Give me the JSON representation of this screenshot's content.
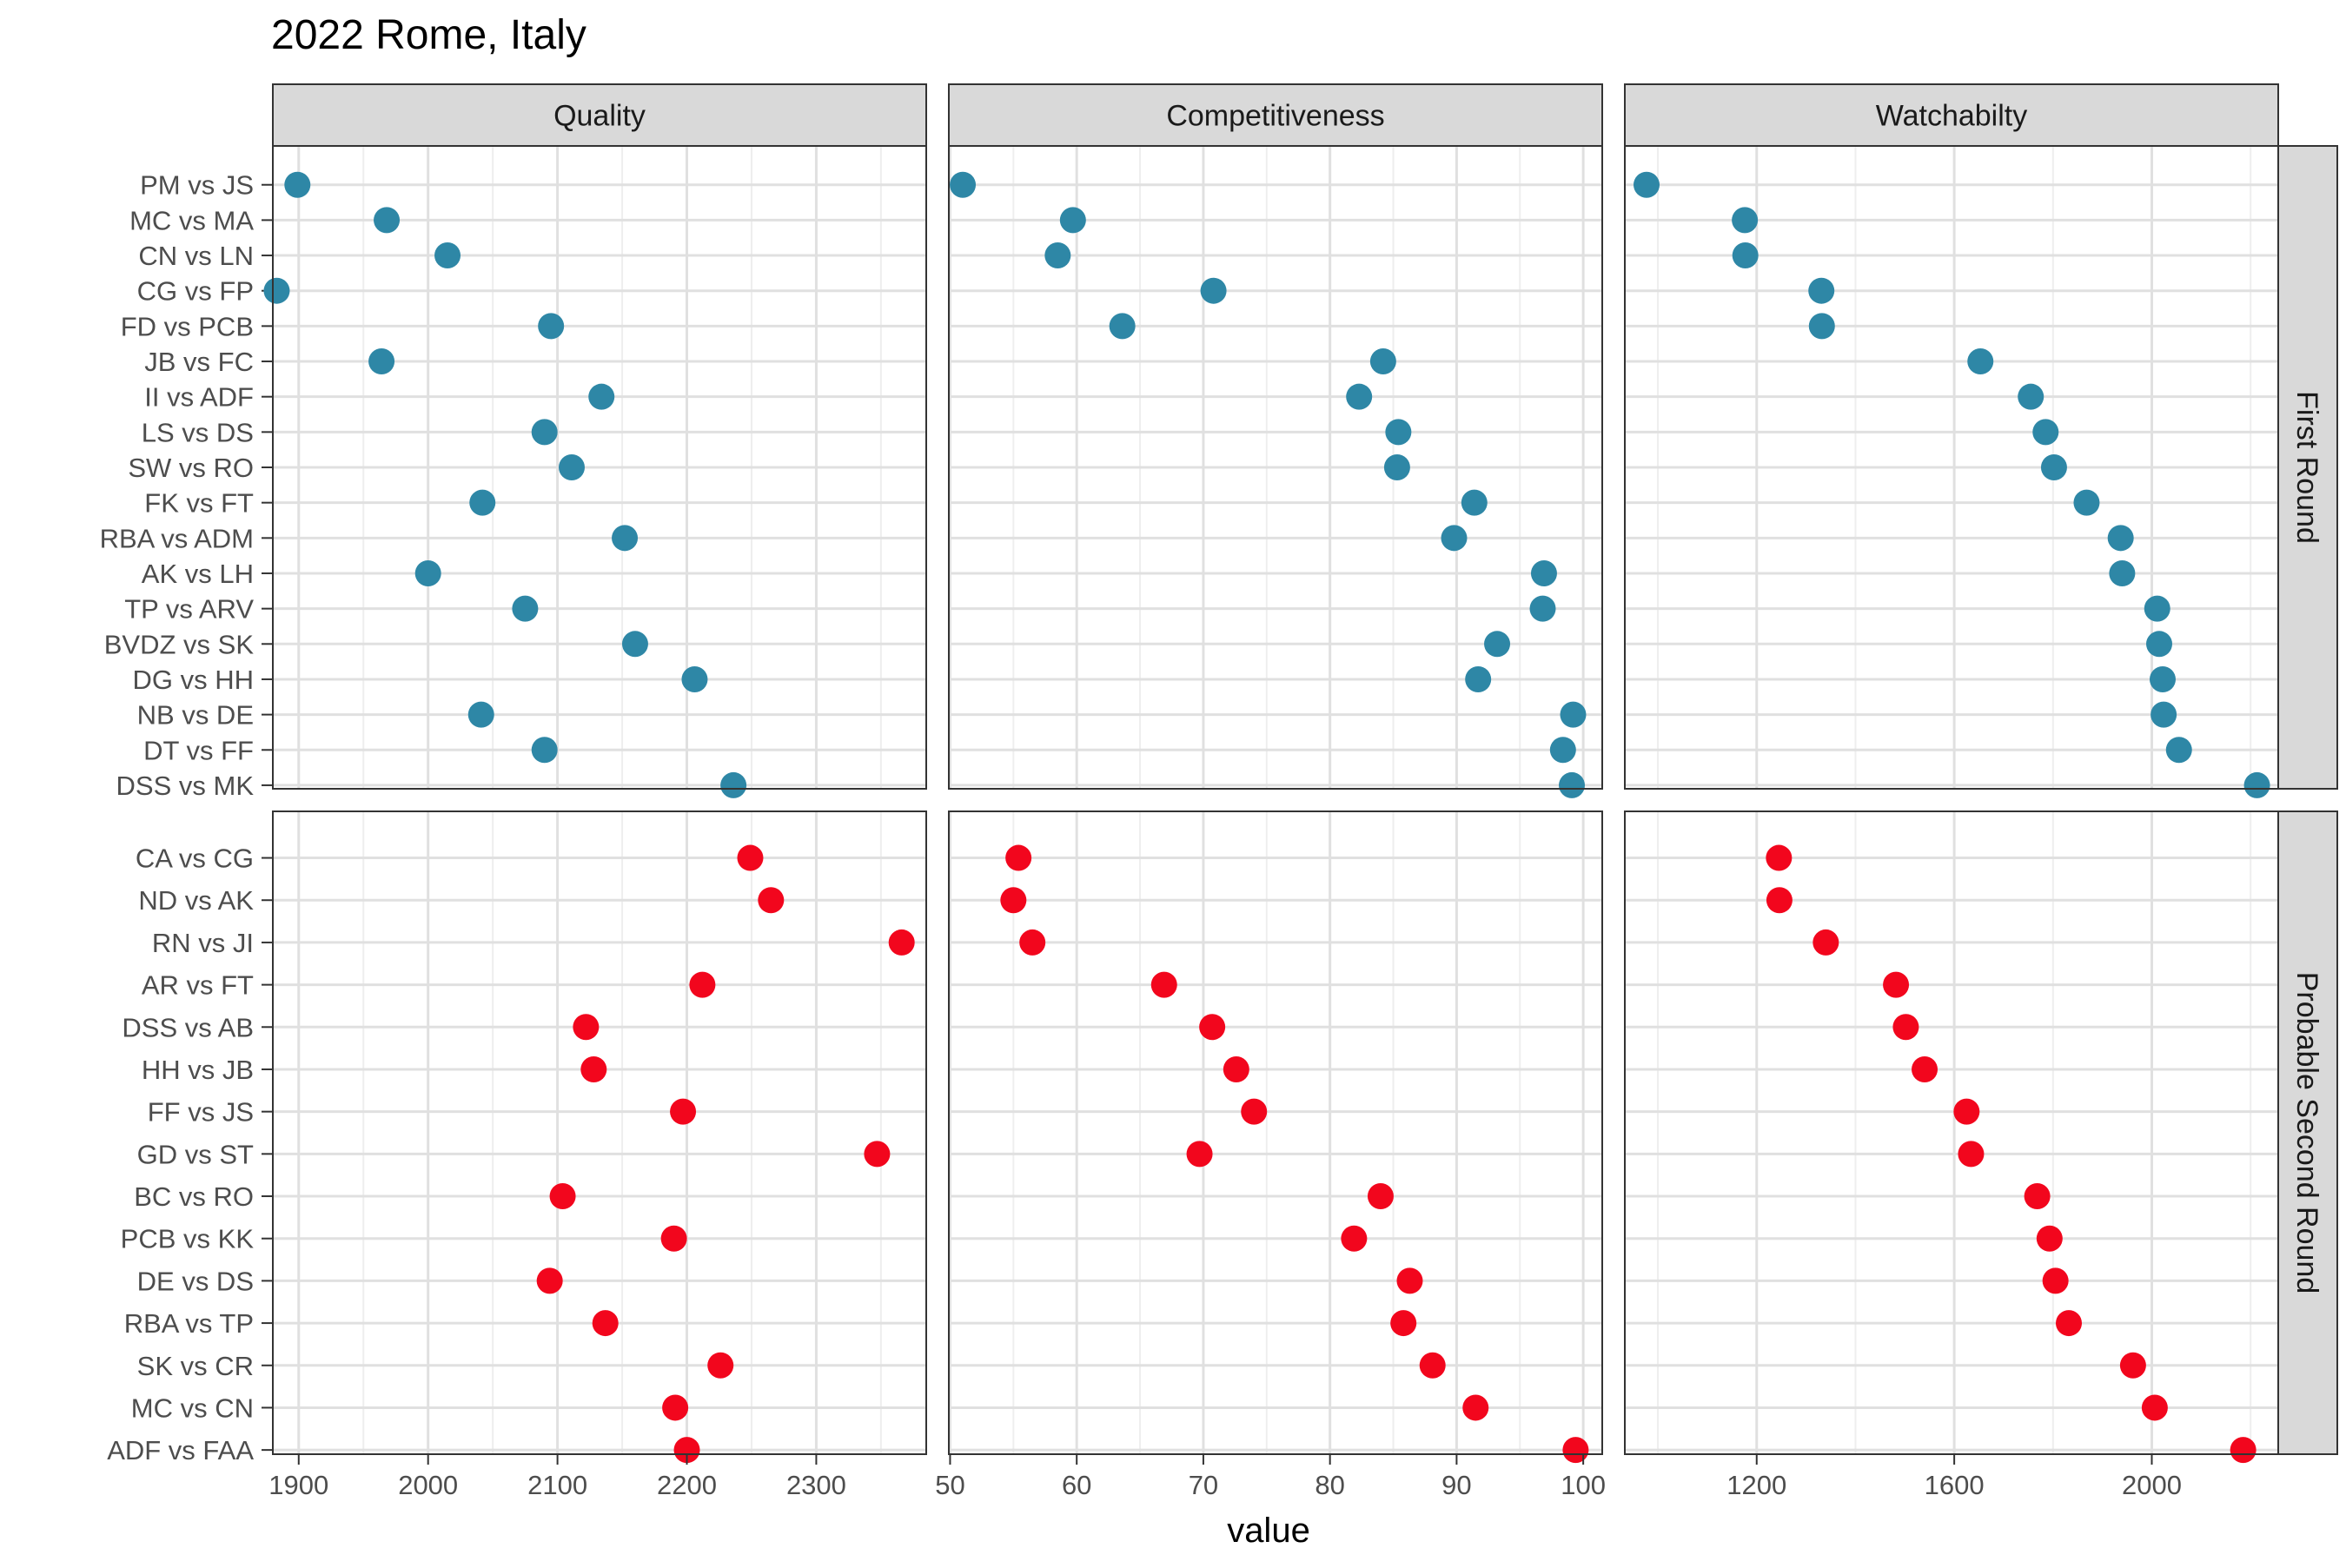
{
  "chart_data": {
    "type": "scatter",
    "title": "2022 Rome, Italy",
    "xlabel": "value",
    "column_facets": [
      "Quality",
      "Competitiveness",
      "Watchabilty"
    ],
    "row_facets": [
      "First Round",
      "Probable Second Round"
    ],
    "colors": {
      "First Round": "#2e87a6",
      "Probable Second Round": "#f2061d"
    },
    "x_axes": [
      {
        "facet": "Quality",
        "range": [
          1880,
          2385
        ],
        "ticks": [
          1900,
          2000,
          2100,
          2200,
          2300
        ],
        "tick_labels": [
          "1900",
          "2000",
          "2100",
          "2200",
          "2300"
        ]
      },
      {
        "facet": "Competitiveness",
        "range": [
          49.9,
          101.5
        ],
        "ticks": [
          50,
          60,
          70,
          80,
          90,
          100
        ],
        "tick_labels": [
          "50",
          "60",
          "70",
          "80",
          "90",
          "100"
        ]
      },
      {
        "facet": "Watchabilty",
        "range": [
          933,
          2256
        ],
        "ticks": [
          1200,
          1600,
          2000
        ],
        "tick_labels": [
          "1200",
          "1600",
          "2000"
        ]
      }
    ],
    "grid": true,
    "panels": [
      {
        "name": "First Round",
        "matches": [
          "DSS vs MK",
          "DT vs FF",
          "NB vs DE",
          "DG vs HH",
          "BVDZ vs SK",
          "TP vs ARV",
          "AK vs LH",
          "RBA vs ADM",
          "FK vs FT",
          "SW vs RO",
          "LS vs DS",
          "II vs ADF",
          "JB vs FC",
          "FD vs PCB",
          "CG vs FP",
          "CN vs LN",
          "MC vs MA",
          "PM vs JS"
        ],
        "series": [
          {
            "facet": "Quality",
            "values": [
              2236,
              2090,
              2041,
              2206,
              2160,
              2075,
              2000,
              2152,
              2042,
              2111,
              2090,
              2134,
              1964,
              2095,
              1883,
              2015,
              1968,
              1899
            ]
          },
          {
            "facet": "Competitiveness",
            "values": [
              99.1,
              98.4,
              99.2,
              91.7,
              93.2,
              96.8,
              96.9,
              89.8,
              91.4,
              85.3,
              85.4,
              82.3,
              84.2,
              63.6,
              70.8,
              58.5,
              59.7,
              51.0
            ]
          },
          {
            "facet": "Watchabilty",
            "values": [
              2213,
              2055,
              2024,
              2022,
              2015,
              2011,
              1940,
              1937,
              1868,
              1802,
              1785,
              1755,
              1653,
              1332,
              1331,
              1177,
              1176,
              977
            ]
          }
        ]
      },
      {
        "name": "Probable Second Round",
        "matches": [
          "ADF vs FAA",
          "MC vs CN",
          "SK vs CR",
          "RBA vs TP",
          "DE vs DS",
          "PCB vs KK",
          "BC vs RO",
          "GD vs ST",
          "FF vs JS",
          "HH vs JB",
          "DSS vs AB",
          "AR vs FT",
          "RN vs JI",
          "ND vs AK",
          "CA vs CG"
        ],
        "series": [
          {
            "facet": "Quality",
            "values": [
              2200,
              2191,
              2226,
              2137,
              2094,
              2190,
              2104,
              2347,
              2197,
              2128,
              2122,
              2212,
              2366,
              2265,
              2249
            ]
          },
          {
            "facet": "Competitiveness",
            "values": [
              99.4,
              91.5,
              88.1,
              85.8,
              86.3,
              81.9,
              84.0,
              69.7,
              74.0,
              72.6,
              70.7,
              66.9,
              56.5,
              55.0,
              55.4
            ]
          },
          {
            "facet": "Watchabilty",
            "values": [
              2185,
              2006,
              1962,
              1832,
              1805,
              1793,
              1768,
              1634,
              1625,
              1540,
              1502,
              1482,
              1340,
              1246,
              1245
            ]
          }
        ]
      }
    ]
  }
}
